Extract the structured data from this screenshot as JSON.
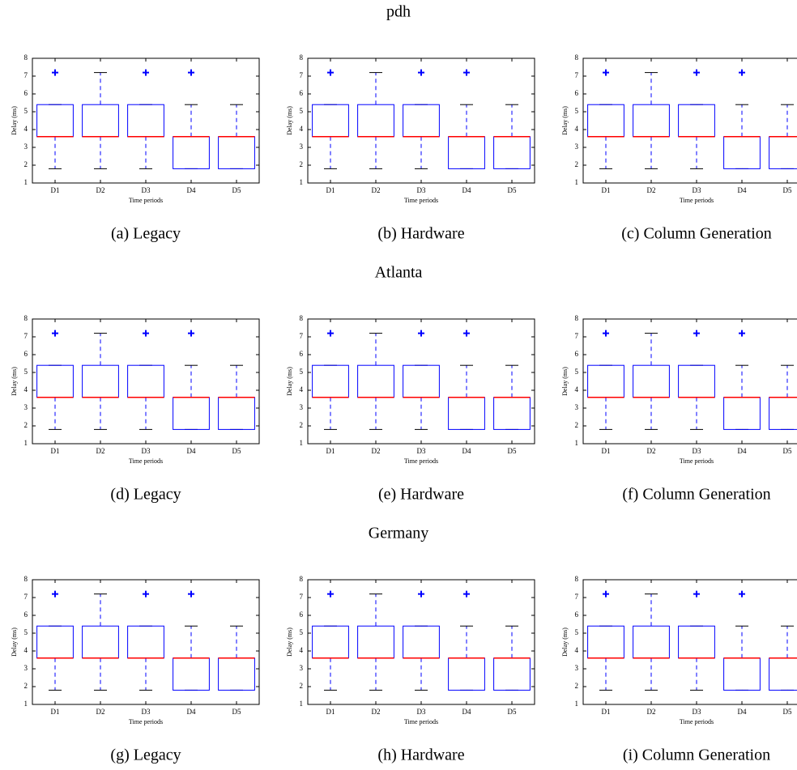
{
  "sections": [
    "pdh",
    "Atlanta",
    "Germany"
  ],
  "chart_data": [
    {
      "type": "box",
      "caption": "(a) Legacy",
      "xlabel": "Time periods",
      "ylabel": "Delay (ms)",
      "categories": [
        "D1",
        "D2",
        "D3",
        "D4",
        "D5"
      ],
      "whisker_low": [
        1.8,
        1.8,
        1.8,
        1.8,
        1.8
      ],
      "q1": [
        3.6,
        3.6,
        3.6,
        1.8,
        1.8
      ],
      "median": [
        3.6,
        3.6,
        3.6,
        3.6,
        3.6
      ],
      "q3": [
        5.4,
        5.4,
        5.4,
        3.6,
        3.6
      ],
      "whisker_high": [
        5.4,
        7.2,
        5.4,
        5.4,
        5.4
      ],
      "outliers": [
        [
          7.2
        ],
        [],
        [
          7.2
        ],
        [
          7.2
        ],
        []
      ],
      "ylim": [
        1,
        8
      ],
      "yticks": [
        1,
        2,
        3,
        4,
        5,
        6,
        7,
        8
      ],
      "box_color": "#0000ff",
      "median_color": "#ff0000"
    },
    {
      "type": "box",
      "caption": "(b) Hardware",
      "xlabel": "Time periods",
      "ylabel": "Delay (ms)",
      "categories": [
        "D1",
        "D2",
        "D3",
        "D4",
        "D5"
      ],
      "whisker_low": [
        1.8,
        1.8,
        1.8,
        1.8,
        1.8
      ],
      "q1": [
        3.6,
        3.6,
        3.6,
        1.8,
        1.8
      ],
      "median": [
        3.6,
        3.6,
        3.6,
        3.6,
        3.6
      ],
      "q3": [
        5.4,
        5.4,
        5.4,
        3.6,
        3.6
      ],
      "whisker_high": [
        5.4,
        7.2,
        5.4,
        5.4,
        5.4
      ],
      "outliers": [
        [
          7.2
        ],
        [],
        [
          7.2
        ],
        [
          7.2
        ],
        []
      ],
      "ylim": [
        1,
        8
      ],
      "yticks": [
        1,
        2,
        3,
        4,
        5,
        6,
        7,
        8
      ],
      "box_color": "#0000ff",
      "median_color": "#ff0000"
    },
    {
      "type": "box",
      "caption": "(c) Column Generation",
      "xlabel": "Time periods",
      "ylabel": "Delay (ms)",
      "categories": [
        "D1",
        "D2",
        "D3",
        "D4",
        "D5"
      ],
      "whisker_low": [
        1.8,
        1.8,
        1.8,
        1.8,
        1.8
      ],
      "q1": [
        3.6,
        3.6,
        3.6,
        1.8,
        1.8
      ],
      "median": [
        3.6,
        3.6,
        3.6,
        3.6,
        3.6
      ],
      "q3": [
        5.4,
        5.4,
        5.4,
        3.6,
        3.6
      ],
      "whisker_high": [
        5.4,
        7.2,
        5.4,
        5.4,
        5.4
      ],
      "outliers": [
        [
          7.2
        ],
        [],
        [
          7.2
        ],
        [
          7.2
        ],
        []
      ],
      "ylim": [
        1,
        8
      ],
      "yticks": [
        1,
        2,
        3,
        4,
        5,
        6,
        7,
        8
      ],
      "box_color": "#0000ff",
      "median_color": "#ff0000"
    },
    {
      "type": "box",
      "caption": "(d) Legacy",
      "xlabel": "Time periods",
      "ylabel": "Delay (ms)",
      "categories": [
        "D1",
        "D2",
        "D3",
        "D4",
        "D5"
      ],
      "whisker_low": [
        1.8,
        1.8,
        1.8,
        1.8,
        1.8
      ],
      "q1": [
        3.6,
        3.6,
        3.6,
        1.8,
        1.8
      ],
      "median": [
        3.6,
        3.6,
        3.6,
        3.6,
        3.6
      ],
      "q3": [
        5.4,
        5.4,
        5.4,
        3.6,
        3.6
      ],
      "whisker_high": [
        5.4,
        7.2,
        5.4,
        5.4,
        5.4
      ],
      "outliers": [
        [
          7.2
        ],
        [],
        [
          7.2
        ],
        [
          7.2
        ],
        []
      ],
      "ylim": [
        1,
        8
      ],
      "yticks": [
        1,
        2,
        3,
        4,
        5,
        6,
        7,
        8
      ],
      "box_color": "#0000ff",
      "median_color": "#ff0000"
    },
    {
      "type": "box",
      "caption": "(e) Hardware",
      "xlabel": "Time periods",
      "ylabel": "Delay (ms)",
      "categories": [
        "D1",
        "D2",
        "D3",
        "D4",
        "D5"
      ],
      "whisker_low": [
        1.8,
        1.8,
        1.8,
        1.8,
        1.8
      ],
      "q1": [
        3.6,
        3.6,
        3.6,
        1.8,
        1.8
      ],
      "median": [
        3.6,
        3.6,
        3.6,
        3.6,
        3.6
      ],
      "q3": [
        5.4,
        5.4,
        5.4,
        3.6,
        3.6
      ],
      "whisker_high": [
        5.4,
        7.2,
        5.4,
        5.4,
        5.4
      ],
      "outliers": [
        [
          7.2
        ],
        [],
        [
          7.2
        ],
        [
          7.2
        ],
        []
      ],
      "ylim": [
        1,
        8
      ],
      "yticks": [
        1,
        2,
        3,
        4,
        5,
        6,
        7,
        8
      ],
      "box_color": "#0000ff",
      "median_color": "#ff0000"
    },
    {
      "type": "box",
      "caption": "(f) Column Generation",
      "xlabel": "Time periods",
      "ylabel": "Delay (ms)",
      "categories": [
        "D1",
        "D2",
        "D3",
        "D4",
        "D5"
      ],
      "whisker_low": [
        1.8,
        1.8,
        1.8,
        1.8,
        1.8
      ],
      "q1": [
        3.6,
        3.6,
        3.6,
        1.8,
        1.8
      ],
      "median": [
        3.6,
        3.6,
        3.6,
        3.6,
        3.6
      ],
      "q3": [
        5.4,
        5.4,
        5.4,
        3.6,
        3.6
      ],
      "whisker_high": [
        5.4,
        7.2,
        5.4,
        5.4,
        5.4
      ],
      "outliers": [
        [
          7.2
        ],
        [],
        [
          7.2
        ],
        [
          7.2
        ],
        []
      ],
      "ylim": [
        1,
        8
      ],
      "yticks": [
        1,
        2,
        3,
        4,
        5,
        6,
        7,
        8
      ],
      "box_color": "#0000ff",
      "median_color": "#ff0000"
    },
    {
      "type": "box",
      "caption": "(g) Legacy",
      "xlabel": "Time periods",
      "ylabel": "Delay (ms)",
      "categories": [
        "D1",
        "D2",
        "D3",
        "D4",
        "D5"
      ],
      "whisker_low": [
        1.8,
        1.8,
        1.8,
        1.8,
        1.8
      ],
      "q1": [
        3.6,
        3.6,
        3.6,
        1.8,
        1.8
      ],
      "median": [
        3.6,
        3.6,
        3.6,
        3.6,
        3.6
      ],
      "q3": [
        5.4,
        5.4,
        5.4,
        3.6,
        3.6
      ],
      "whisker_high": [
        5.4,
        7.2,
        5.4,
        5.4,
        5.4
      ],
      "outliers": [
        [
          7.2
        ],
        [],
        [
          7.2
        ],
        [
          7.2
        ],
        []
      ],
      "ylim": [
        1,
        8
      ],
      "yticks": [
        1,
        2,
        3,
        4,
        5,
        6,
        7,
        8
      ],
      "box_color": "#0000ff",
      "median_color": "#ff0000"
    },
    {
      "type": "box",
      "caption": "(h) Hardware",
      "xlabel": "Time periods",
      "ylabel": "Delay (ms)",
      "categories": [
        "D1",
        "D2",
        "D3",
        "D4",
        "D5"
      ],
      "whisker_low": [
        1.8,
        1.8,
        1.8,
        1.8,
        1.8
      ],
      "q1": [
        3.6,
        3.6,
        3.6,
        1.8,
        1.8
      ],
      "median": [
        3.6,
        3.6,
        3.6,
        3.6,
        3.6
      ],
      "q3": [
        5.4,
        5.4,
        5.4,
        3.6,
        3.6
      ],
      "whisker_high": [
        5.4,
        7.2,
        5.4,
        5.4,
        5.4
      ],
      "outliers": [
        [
          7.2
        ],
        [],
        [
          7.2
        ],
        [
          7.2
        ],
        []
      ],
      "ylim": [
        1,
        8
      ],
      "yticks": [
        1,
        2,
        3,
        4,
        5,
        6,
        7,
        8
      ],
      "box_color": "#0000ff",
      "median_color": "#ff0000"
    },
    {
      "type": "box",
      "caption": "(i) Column Generation",
      "xlabel": "Time periods",
      "ylabel": "Delay (ms)",
      "categories": [
        "D1",
        "D2",
        "D3",
        "D4",
        "D5"
      ],
      "whisker_low": [
        1.8,
        1.8,
        1.8,
        1.8,
        1.8
      ],
      "q1": [
        3.6,
        3.6,
        3.6,
        1.8,
        1.8
      ],
      "median": [
        3.6,
        3.6,
        3.6,
        3.6,
        3.6
      ],
      "q3": [
        5.4,
        5.4,
        5.4,
        3.6,
        3.6
      ],
      "whisker_high": [
        5.4,
        7.2,
        5.4,
        5.4,
        5.4
      ],
      "outliers": [
        [
          7.2
        ],
        [],
        [
          7.2
        ],
        [
          7.2
        ],
        []
      ],
      "ylim": [
        1,
        8
      ],
      "yticks": [
        1,
        2,
        3,
        4,
        5,
        6,
        7,
        8
      ],
      "box_color": "#0000ff",
      "median_color": "#ff0000"
    }
  ]
}
